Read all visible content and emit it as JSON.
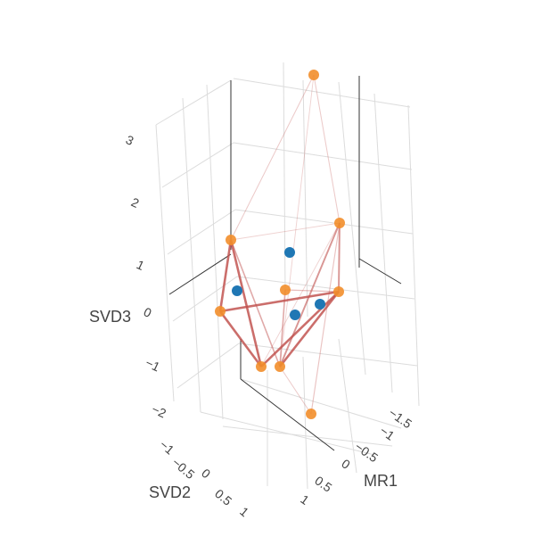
{
  "chart_data": {
    "type": "scatter3d",
    "axes": {
      "x": {
        "label": "MR1",
        "ticks": [
          "1",
          "0.5",
          "0",
          "−0.5",
          "−1",
          "−1.5"
        ]
      },
      "y": {
        "label": "SVD2",
        "ticks": [
          "−1",
          "−0.5",
          "0",
          "0.5",
          "1"
        ]
      },
      "z": {
        "label": "SVD3",
        "ticks": [
          "3",
          "2",
          "1",
          "0",
          "−1",
          "−2"
        ]
      }
    },
    "colors": {
      "blue": "#1f77b4",
      "orange": "#f28e2b",
      "edge": "#c0504d"
    },
    "points": [
      {
        "id": "o1",
        "color": "orange"
      },
      {
        "id": "o2",
        "color": "orange"
      },
      {
        "id": "o3",
        "color": "orange"
      },
      {
        "id": "o4",
        "color": "orange"
      },
      {
        "id": "o5",
        "color": "orange"
      },
      {
        "id": "o6",
        "color": "orange"
      },
      {
        "id": "o7",
        "color": "orange"
      },
      {
        "id": "o8",
        "color": "orange"
      },
      {
        "id": "o9",
        "color": "orange"
      },
      {
        "id": "b1",
        "color": "blue"
      },
      {
        "id": "b2",
        "color": "blue"
      },
      {
        "id": "b3",
        "color": "blue"
      },
      {
        "id": "b4",
        "color": "blue"
      }
    ],
    "edges": [
      {
        "from": "o2",
        "to": "o3",
        "weight": 0.9
      },
      {
        "from": "o2",
        "to": "o4",
        "weight": 0.9
      },
      {
        "from": "o3",
        "to": "o4",
        "weight": 0.9
      },
      {
        "from": "o4",
        "to": "o5",
        "weight": 0.9
      },
      {
        "from": "o3",
        "to": "o5",
        "weight": 0.9
      },
      {
        "from": "o5",
        "to": "o7",
        "weight": 0.9
      },
      {
        "from": "o7",
        "to": "o6",
        "weight": 0.6
      },
      {
        "from": "o5",
        "to": "o6",
        "weight": 0.6
      },
      {
        "from": "o2",
        "to": "o7",
        "weight": 0.45
      },
      {
        "from": "o7",
        "to": "o8",
        "weight": 0.45
      },
      {
        "from": "o1",
        "to": "o2",
        "weight": 0.2
      },
      {
        "from": "o1",
        "to": "o6",
        "weight": 0.2
      },
      {
        "from": "o1",
        "to": "o7",
        "weight": 0.15
      },
      {
        "from": "o6",
        "to": "o9",
        "weight": 0.25
      },
      {
        "from": "o7",
        "to": "o9",
        "weight": 0.2
      },
      {
        "from": "o2",
        "to": "o6",
        "weight": 0.15
      },
      {
        "from": "o4",
        "to": "o6",
        "weight": 0.15
      },
      {
        "from": "o5",
        "to": "o8",
        "weight": 0.3
      }
    ]
  }
}
